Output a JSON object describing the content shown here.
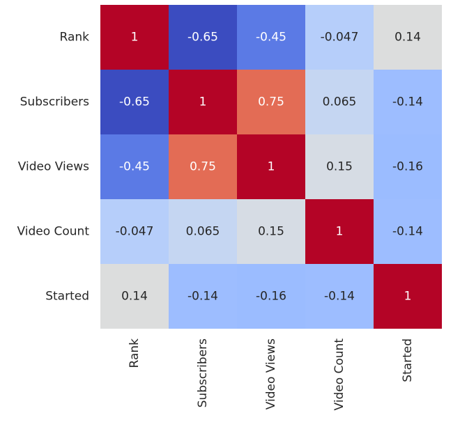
{
  "chart_data": {
    "type": "heatmap",
    "title": "",
    "xlabel": "",
    "ylabel": "",
    "x_categories": [
      "Rank",
      "Subscribers",
      "Video Views",
      "Video Count",
      "Started"
    ],
    "y_categories": [
      "Rank",
      "Subscribers",
      "Video Views",
      "Video Count",
      "Started"
    ],
    "values": [
      [
        1,
        -0.65,
        -0.45,
        -0.047,
        0.14
      ],
      [
        -0.65,
        1,
        0.75,
        0.065,
        -0.14
      ],
      [
        -0.45,
        0.75,
        1,
        0.15,
        -0.16
      ],
      [
        -0.047,
        0.065,
        0.15,
        1,
        -0.14
      ],
      [
        0.14,
        -0.14,
        -0.16,
        -0.14,
        1
      ]
    ],
    "value_labels": [
      [
        "1",
        "-0.65",
        "-0.45",
        "-0.047",
        "0.14"
      ],
      [
        "-0.65",
        "1",
        "0.75",
        "0.065",
        "-0.14"
      ],
      [
        "-0.45",
        "0.75",
        "1",
        "0.15",
        "-0.16"
      ],
      [
        "-0.047",
        "0.065",
        "0.15",
        "1",
        "-0.14"
      ],
      [
        "0.14",
        "-0.14",
        "-0.16",
        "-0.14",
        "1"
      ]
    ],
    "colormap": "coolwarm",
    "vmin": -0.65,
    "vmax": 1,
    "colorbar": false,
    "annotated": true,
    "cell_colors": [
      [
        "#b40426",
        "#3b4cc0",
        "#5b7ae5",
        "#b6cefa",
        "#dcdddd"
      ],
      [
        "#3b4cc0",
        "#b40426",
        "#e36c55",
        "#c5d6f2",
        "#9dbdff"
      ],
      [
        "#5b7ae5",
        "#e36c55",
        "#b40426",
        "#d6dce4",
        "#9bbcff"
      ],
      [
        "#b6cefa",
        "#c5d6f2",
        "#d6dce4",
        "#b40426",
        "#9dbdff"
      ],
      [
        "#dcdddd",
        "#9dbdff",
        "#9bbcff",
        "#9dbdff",
        "#b40426"
      ]
    ],
    "text_colors": {
      "light": "#ffffff",
      "dark": "#262626"
    }
  }
}
